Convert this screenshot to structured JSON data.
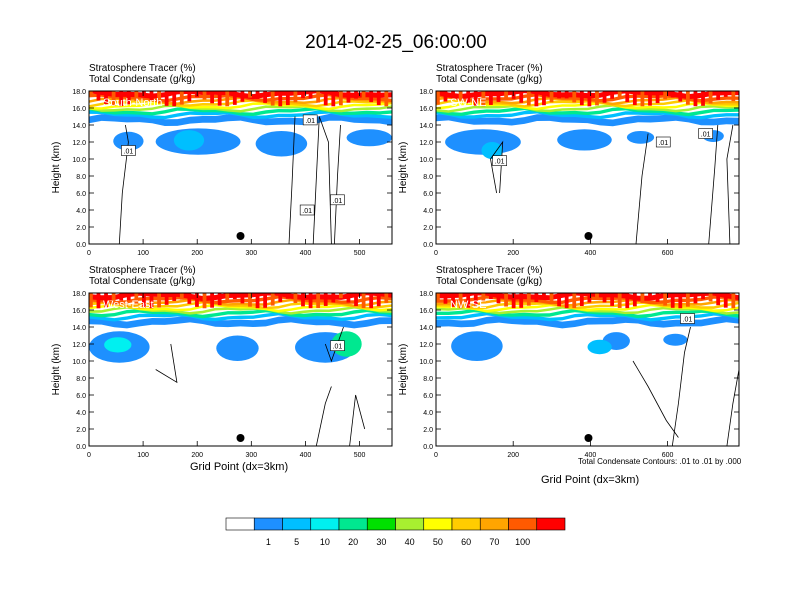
{
  "title": "2014-02-25_06:00:00",
  "field_label": "Stratosphere Tracer   (%)",
  "contour_label": "Total Condensate   (g/kg)",
  "contour_note": "Total Condensate Contours: .01 to .01 by .000",
  "chart_data": [
    {
      "type": "heatmap",
      "panel": "South-North",
      "ylabel": "Height (km)",
      "xlabel": "",
      "xlim": [
        0,
        560
      ],
      "ylim": [
        0,
        18
      ],
      "xticks": [
        0,
        100,
        200,
        300,
        400,
        500
      ],
      "yticks": [
        "0.0",
        "2.0",
        "4.0",
        "6.0",
        "8.0",
        "10.0",
        "12.0",
        "14.0",
        "16.0",
        "18.0"
      ],
      "marker_x": 280,
      "contour_labels": [
        ".01",
        ".01",
        ".01",
        ".01"
      ]
    },
    {
      "type": "heatmap",
      "panel": "SW-NE",
      "ylabel": "Height (km)",
      "xlabel": "",
      "xlim": [
        0,
        785
      ],
      "ylim": [
        0,
        18
      ],
      "xticks": [
        0,
        200,
        400,
        600
      ],
      "yticks": [
        "0.0",
        "2.0",
        "4.0",
        "6.0",
        "8.0",
        "10.0",
        "12.0",
        "14.0",
        "16.0",
        "18.0"
      ],
      "marker_x": 395,
      "contour_labels": [
        ".01",
        ".01",
        ".01"
      ]
    },
    {
      "type": "heatmap",
      "panel": "West-East",
      "ylabel": "Height (km)",
      "xlabel": "Grid Point (dx=3km)",
      "xlim": [
        0,
        560
      ],
      "ylim": [
        0,
        18
      ],
      "xticks": [
        0,
        100,
        200,
        300,
        400,
        500
      ],
      "yticks": [
        "0.0",
        "2.0",
        "4.0",
        "6.0",
        "8.0",
        "10.0",
        "12.0",
        "14.0",
        "16.0",
        "18.0"
      ],
      "marker_x": 280,
      "contour_labels": [
        ".01"
      ]
    },
    {
      "type": "heatmap",
      "panel": "NW-SE",
      "ylabel": "Height (km)",
      "xlabel": "Grid Point (dx=3km)",
      "xlim": [
        0,
        785
      ],
      "ylim": [
        0,
        18
      ],
      "xticks": [
        0,
        200,
        400,
        600
      ],
      "yticks": [
        "0.0",
        "2.0",
        "4.0",
        "6.0",
        "8.0",
        "10.0",
        "12.0",
        "14.0",
        "16.0",
        "18.0"
      ],
      "marker_x": 395,
      "contour_labels": [
        ".01"
      ]
    }
  ],
  "colorbar": {
    "levels": [
      "1",
      "5",
      "10",
      "20",
      "30",
      "40",
      "50",
      "60",
      "70",
      "100"
    ],
    "colors": [
      "#ffffff",
      "#1e90ff",
      "#00bfff",
      "#00f0f0",
      "#00e890",
      "#00e000",
      "#a8f030",
      "#ffff00",
      "#ffcc00",
      "#ffa500",
      "#ff5a00",
      "#ff0000"
    ]
  }
}
